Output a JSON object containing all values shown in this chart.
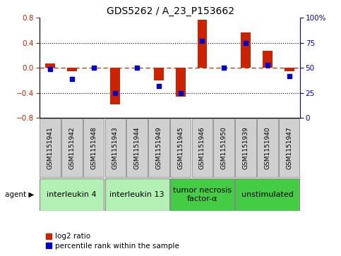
{
  "title": "GDS5262 / A_23_P153662",
  "samples": [
    "GSM1151941",
    "GSM1151942",
    "GSM1151948",
    "GSM1151943",
    "GSM1151944",
    "GSM1151949",
    "GSM1151945",
    "GSM1151946",
    "GSM1151950",
    "GSM1151939",
    "GSM1151940",
    "GSM1151947"
  ],
  "log2_ratio": [
    0.07,
    -0.05,
    0.0,
    -0.58,
    0.0,
    -0.2,
    -0.46,
    0.77,
    0.0,
    0.57,
    0.27,
    -0.05
  ],
  "percentile": [
    49,
    39,
    50,
    25,
    50,
    32,
    25,
    77,
    50,
    75,
    53,
    42
  ],
  "agents": [
    {
      "label": "interleukin 4",
      "cols": [
        0,
        1,
        2
      ],
      "color": "#b3f0b3"
    },
    {
      "label": "interleukin 13",
      "cols": [
        3,
        4,
        5
      ],
      "color": "#b3f0b3"
    },
    {
      "label": "tumor necrosis\nfactor-α",
      "cols": [
        6,
        7,
        8
      ],
      "color": "#44cc44"
    },
    {
      "label": "unstimulated",
      "cols": [
        9,
        10,
        11
      ],
      "color": "#44cc44"
    }
  ],
  "ylim_left": [
    -0.8,
    0.8
  ],
  "ylim_right": [
    0,
    100
  ],
  "yticks_left": [
    -0.8,
    -0.4,
    0.0,
    0.4,
    0.8
  ],
  "yticks_right": [
    0,
    25,
    50,
    75,
    100
  ],
  "bar_color": "#cc2200",
  "dot_color": "#0000cc",
  "zero_line_color": "#cc2200",
  "grid_color": "#000000",
  "bg_color": "#ffffff",
  "plot_bg": "#ffffff",
  "legend_red_label": "log2 ratio",
  "legend_blue_label": "percentile rank within the sample",
  "bar_width": 0.45,
  "dot_size": 22,
  "sample_fontsize": 6.5,
  "title_fontsize": 10,
  "agent_fontsize": 8
}
